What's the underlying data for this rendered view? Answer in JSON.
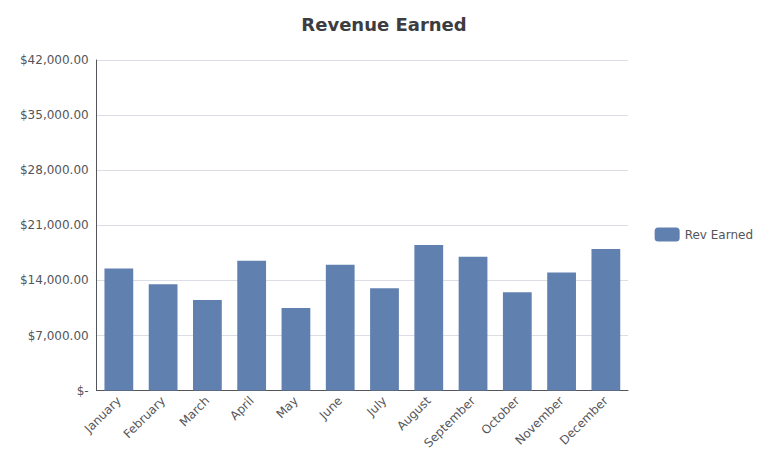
{
  "chart_data": {
    "type": "bar",
    "title": "Revenue Earned",
    "categories": [
      "January",
      "February",
      "March",
      "April",
      "May",
      "June",
      "July",
      "August",
      "September",
      "October",
      "November",
      "December"
    ],
    "series": [
      {
        "name": "Rev Earned",
        "color": "#6080b0",
        "values": [
          15500,
          13500,
          11500,
          16500,
          10500,
          16000,
          13000,
          18500,
          17000,
          12500,
          15000,
          18000
        ]
      }
    ],
    "ylim": [
      0,
      42000
    ],
    "yticks": [
      {
        "value": 0,
        "label": "$-"
      },
      {
        "value": 7000,
        "label": "$7,000.00"
      },
      {
        "value": 14000,
        "label": "$14,000.00"
      },
      {
        "value": 21000,
        "label": "$21,000.00"
      },
      {
        "value": 28000,
        "label": "$28,000.00"
      },
      {
        "value": 35000,
        "label": "$35,000.00"
      },
      {
        "value": 42000,
        "label": "$42,000.00"
      }
    ],
    "grid": true,
    "legend": "right"
  }
}
